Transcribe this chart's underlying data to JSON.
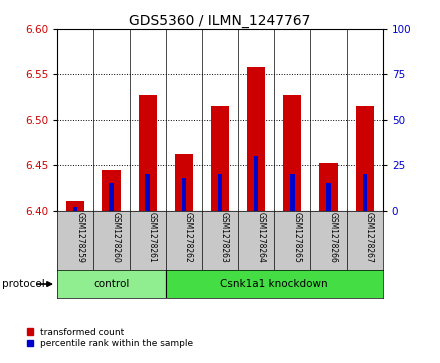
{
  "title": "GDS5360 / ILMN_1247767",
  "samples": [
    "GSM1278259",
    "GSM1278260",
    "GSM1278261",
    "GSM1278262",
    "GSM1278263",
    "GSM1278264",
    "GSM1278265",
    "GSM1278266",
    "GSM1278267"
  ],
  "red_values": [
    6.41,
    6.445,
    6.527,
    6.462,
    6.515,
    6.558,
    6.527,
    6.452,
    6.515
  ],
  "blue_values_pct": [
    2,
    15,
    20,
    18,
    20,
    30,
    20,
    15,
    20
  ],
  "ylim_left": [
    6.4,
    6.6
  ],
  "ylim_right": [
    0,
    100
  ],
  "yticks_left": [
    6.4,
    6.45,
    6.5,
    6.55,
    6.6
  ],
  "yticks_right": [
    0,
    25,
    50,
    75,
    100
  ],
  "red_color": "#cc0000",
  "blue_color": "#0000cc",
  "bar_base": 6.4,
  "red_bar_width": 0.5,
  "blue_bar_width": 0.12,
  "control_count": 3,
  "knockdown_count": 6,
  "group_labels": [
    "control",
    "Csnk1a1 knockdown"
  ],
  "group_colors": [
    "#90ee90",
    "#44dd44"
  ],
  "protocol_label": "protocol",
  "legend_red": "transformed count",
  "legend_blue": "percentile rank within the sample",
  "tick_bg": "#c8c8c8"
}
